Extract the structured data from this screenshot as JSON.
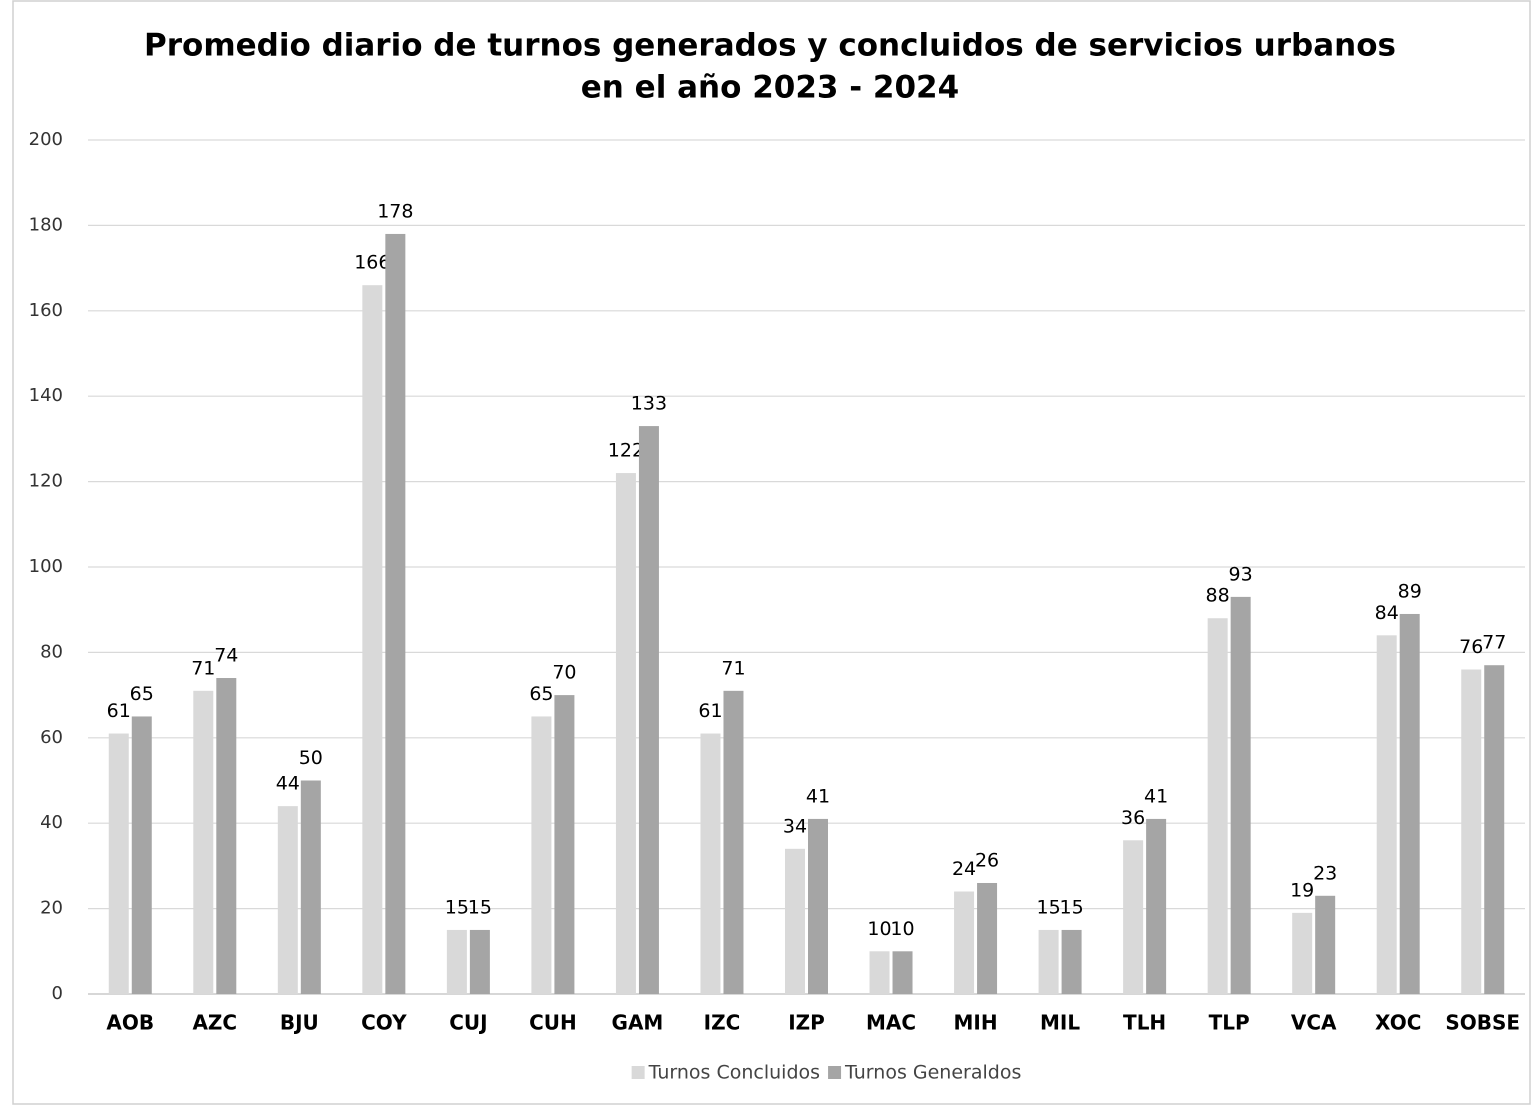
{
  "chart_data": {
    "type": "bar",
    "title": [
      "Promedio diario de turnos generados y concluidos de servicios urbanos",
      "en el año 2023 - 2024"
    ],
    "categories": [
      "AOB",
      "AZC",
      "BJU",
      "COY",
      "CUJ",
      "CUH",
      "GAM",
      "IZC",
      "IZP",
      "MAC",
      "MIH",
      "MIL",
      "TLH",
      "TLP",
      "VCA",
      "XOC",
      "SOBSE"
    ],
    "series": [
      {
        "name": "Turnos Concluidos",
        "color": "#d9d9d9",
        "values": [
          61,
          71,
          44,
          166,
          15,
          65,
          122,
          61,
          34,
          10,
          24,
          15,
          36,
          88,
          19,
          84,
          76
        ]
      },
      {
        "name": "Turnos Generaldos",
        "color": "#a5a5a5",
        "values": [
          65,
          74,
          50,
          178,
          15,
          70,
          133,
          71,
          41,
          10,
          26,
          15,
          41,
          93,
          23,
          89,
          77
        ]
      }
    ],
    "ylim": [
      0,
      200
    ],
    "yticks": [
      0,
      20,
      40,
      60,
      80,
      100,
      120,
      140,
      160,
      180,
      200
    ],
    "grid": true,
    "legend": "bottom"
  }
}
